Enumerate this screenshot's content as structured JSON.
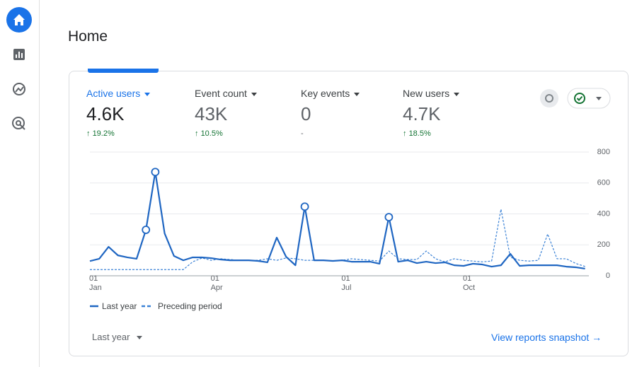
{
  "header": {
    "title": "Home"
  },
  "metrics": [
    {
      "label": "Active users",
      "value": "4.6K",
      "change": "19.2%"
    },
    {
      "label": "Event count",
      "value": "43K",
      "change": "10.5%"
    },
    {
      "label": "Key events",
      "value": "0",
      "change": "-"
    },
    {
      "label": "New users",
      "value": "4.7K",
      "change": "18.5%"
    }
  ],
  "chart_data": {
    "type": "line",
    "categories": [
      "01\nJan",
      null,
      null,
      null,
      null,
      null,
      null,
      null,
      null,
      null,
      null,
      null,
      null,
      "01\nApr",
      null,
      null,
      null,
      null,
      null,
      null,
      null,
      null,
      null,
      null,
      null,
      null,
      null,
      "01\nJul",
      null,
      null,
      null,
      null,
      null,
      null,
      null,
      null,
      null,
      null,
      null,
      null,
      "01\nOct",
      null,
      null,
      null,
      null,
      null,
      null,
      null,
      null,
      null,
      null,
      null,
      null,
      null
    ],
    "series": [
      {
        "name": "Last year",
        "color": "#1f66c2",
        "style": "solid",
        "values": [
          95,
          110,
          187,
          132,
          119,
          110,
          297,
          671,
          274,
          128,
          100,
          119,
          119,
          114,
          105,
          100,
          100,
          100,
          96,
          87,
          247,
          123,
          68,
          447,
          100,
          100,
          96,
          100,
          91,
          91,
          91,
          78,
          379,
          91,
          100,
          82,
          91,
          82,
          87,
          68,
          64,
          78,
          73,
          59,
          68,
          142,
          64,
          68,
          68,
          68,
          68,
          59,
          55,
          46
        ]
      },
      {
        "name": "Preceding period",
        "color": "#3b82d6",
        "style": "dashed",
        "values": [
          40,
          40,
          40,
          40,
          40,
          40,
          40,
          40,
          40,
          40,
          40,
          90,
          115,
          100,
          110,
          105,
          100,
          100,
          100,
          110,
          100,
          115,
          110,
          100,
          100,
          100,
          95,
          100,
          110,
          105,
          100,
          95,
          160,
          110,
          105,
          105,
          160,
          110,
          90,
          110,
          100,
          95,
          90,
          95,
          430,
          120,
          100,
          95,
          100,
          270,
          110,
          110,
          80,
          60
        ]
      }
    ],
    "highlighted": [
      6,
      7,
      23,
      32
    ],
    "ylim": [
      0,
      800
    ],
    "yticks": [
      0,
      200,
      400,
      600,
      800
    ],
    "grid": true
  },
  "footer": {
    "period": "Last year",
    "link": "View reports snapshot"
  }
}
